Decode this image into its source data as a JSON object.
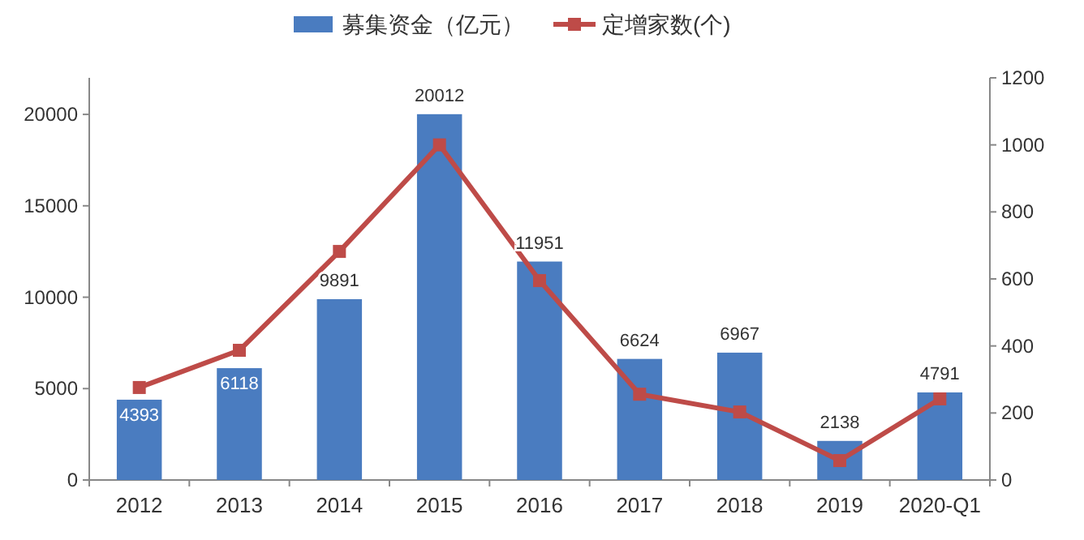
{
  "chart_data": {
    "type": "bar",
    "legend": "top",
    "marker": "square",
    "line_style": "solid",
    "grid": false,
    "categories": [
      "2012",
      "2013",
      "2014",
      "2015",
      "2016",
      "2017",
      "2018",
      "2019",
      "2020-Q1"
    ],
    "series": [
      {
        "name": "募集资金（亿元）",
        "color": "#4a7cc0",
        "values": [
          4393,
          6118,
          9891,
          20012,
          11951,
          6624,
          6967,
          2138,
          4791
        ],
        "value_labels": [
          "4393",
          "6118",
          "9891",
          "20012",
          "11951",
          "6624",
          "6967",
          "2138",
          "4791"
        ]
      },
      {
        "name": "定增家数(个)",
        "type": "line",
        "axis": "y2",
        "color": "#be4b48",
        "values": [
          276,
          387,
          682,
          1000,
          595,
          256,
          203,
          58,
          242
        ]
      }
    ],
    "ylim": [
      0,
      22000
    ],
    "yticks": [
      0,
      5000,
      10000,
      15000,
      20000
    ],
    "y2lim": [
      0,
      1200
    ],
    "y2ticks": [
      0,
      200,
      400,
      600,
      800,
      1000,
      1200
    ]
  }
}
